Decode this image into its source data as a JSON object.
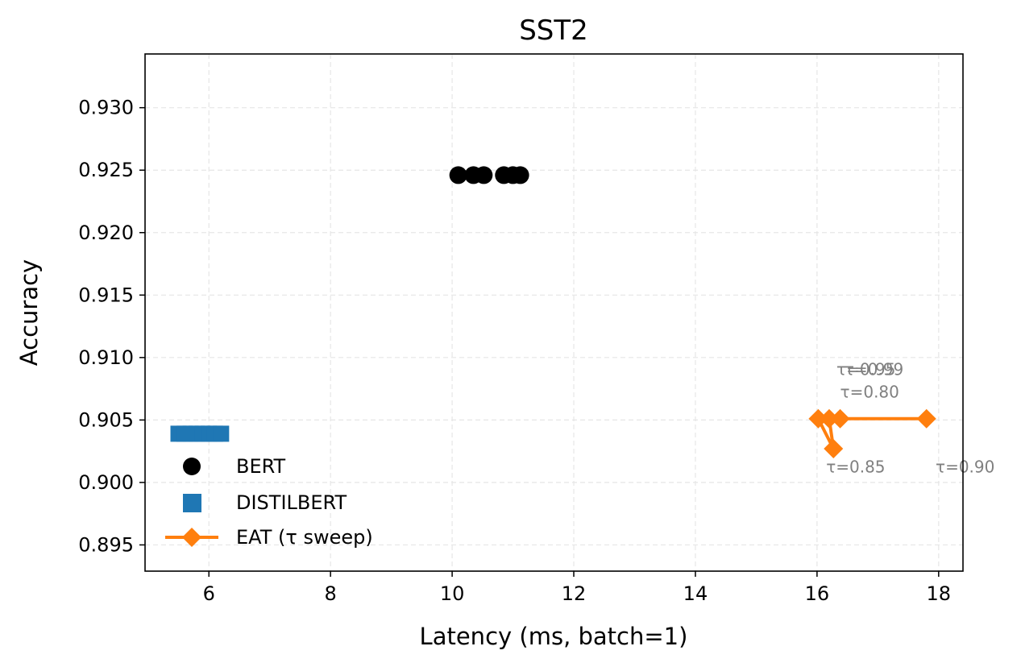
{
  "chart_data": {
    "type": "scatter",
    "title": "SST2",
    "xlabel": "Latency (ms, batch=1)",
    "ylabel": "Accuracy",
    "xlim": [
      4.95,
      18.4
    ],
    "ylim": [
      0.8929,
      0.9343
    ],
    "xticks": [
      6,
      8,
      10,
      12,
      14,
      16,
      18
    ],
    "yticks": [
      0.895,
      0.9,
      0.905,
      0.91,
      0.915,
      0.92,
      0.925,
      0.93
    ],
    "xtick_labels": [
      "6",
      "8",
      "10",
      "12",
      "14",
      "16",
      "18"
    ],
    "ytick_labels": [
      "0.895",
      "0.900",
      "0.905",
      "0.910",
      "0.915",
      "0.920",
      "0.925",
      "0.930"
    ],
    "grid": true,
    "legend_position": "lower-left",
    "series": [
      {
        "name": "BERT",
        "marker": "circle",
        "color": "#000000",
        "x": [
          10.1,
          10.35,
          10.52,
          10.85,
          11.0,
          11.12
        ],
        "y": [
          0.9246,
          0.9246,
          0.9246,
          0.9246,
          0.9246,
          0.9246
        ]
      },
      {
        "name": "DISTILBERT",
        "marker": "square",
        "color": "#1f77b4",
        "x": [
          5.5,
          5.6,
          5.7,
          5.8,
          5.9,
          6.0,
          6.1,
          6.2
        ],
        "y": [
          0.9039,
          0.9039,
          0.9039,
          0.9039,
          0.9039,
          0.9039,
          0.9039,
          0.9039
        ]
      },
      {
        "name": "EAT (τ sweep)",
        "marker": "diamond",
        "line": true,
        "color": "#ff7f0e",
        "x": [
          16.02,
          16.27,
          16.2,
          16.38,
          17.8
        ],
        "y": [
          0.9051,
          0.9027,
          0.9051,
          0.9051,
          0.9051
        ]
      }
    ],
    "annotations": [
      {
        "text": "τ=0.95",
        "x": 16.32,
        "y": 0.9086
      },
      {
        "text": "τ=0.99",
        "x": 16.45,
        "y": 0.9086
      },
      {
        "text": "τ=0.80",
        "x": 16.38,
        "y": 0.9068
      },
      {
        "text": "τ=0.85",
        "x": 16.15,
        "y": 0.9008
      },
      {
        "text": "τ=0.90",
        "x": 17.95,
        "y": 0.9008
      }
    ]
  }
}
